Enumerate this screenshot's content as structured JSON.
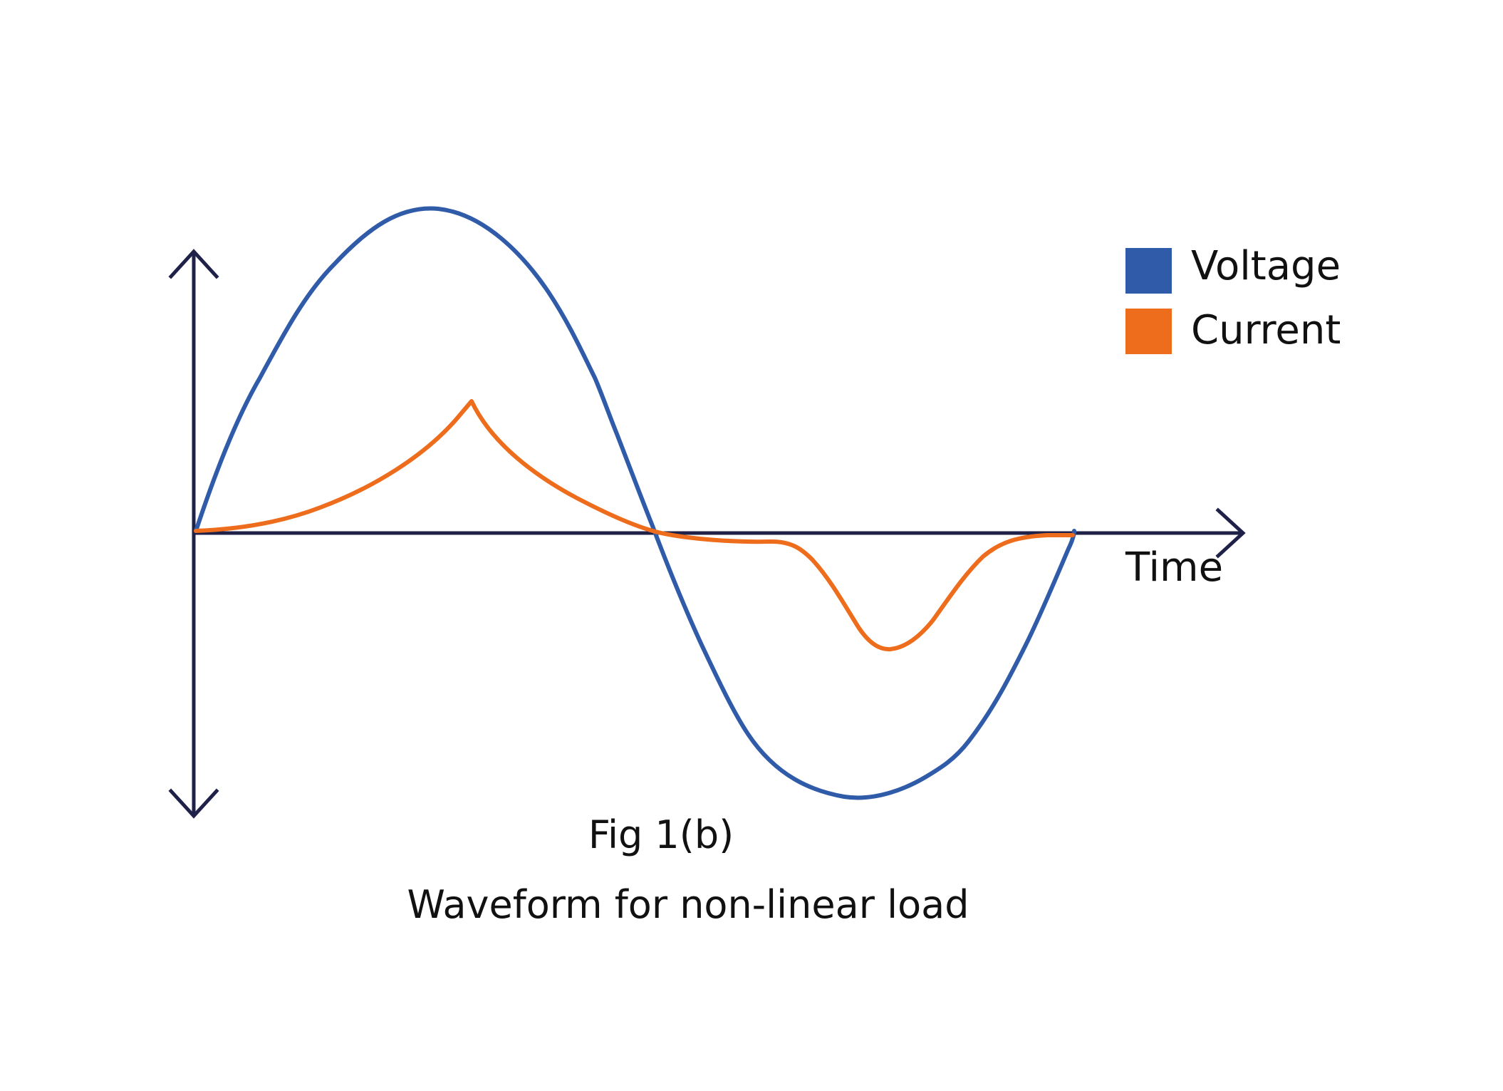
{
  "colors": {
    "axis": "#1f2148",
    "voltage": "#2f5ba8",
    "current": "#ee6d1c",
    "text": "#111111",
    "background": "#ffffff"
  },
  "axes": {
    "time_label": "Time"
  },
  "legend": {
    "items": [
      {
        "label": "Voltage",
        "color": "#2f5ba8"
      },
      {
        "label": "Current",
        "color": "#ee6d1c"
      }
    ]
  },
  "caption": {
    "line1": "Fig 1(b)",
    "line2": "Waveform for non-linear load"
  }
}
